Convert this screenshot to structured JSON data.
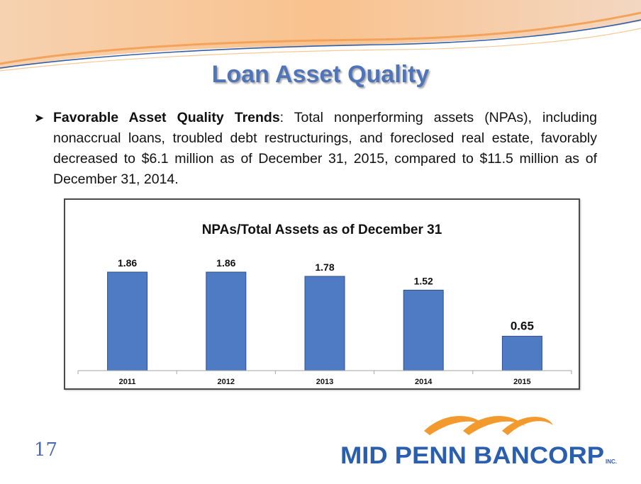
{
  "slide": {
    "title": "Loan Asset Quality",
    "bullet": {
      "lead": "Favorable Asset Quality Trends",
      "text": ":  Total nonperforming assets (NPAs), including nonaccrual loans, troubled debt restructurings, and foreclosed real estate, favorably decreased to $6.1 million as of December 31, 2015, compared to $11.5 million as of December 31, 2014."
    },
    "page_number": "17",
    "logo_text": "MID PENN BANCORP",
    "logo_suffix": "INC."
  },
  "colors": {
    "title": "#4f74b8",
    "bar": "#4f7bc4",
    "logo_blue": "#2a5fae",
    "logo_orange": "#f29a2e"
  },
  "chart_data": {
    "type": "bar",
    "title": "NPAs/Total Assets as of December 31",
    "categories": [
      "2011",
      "2012",
      "2013",
      "2014",
      "2015"
    ],
    "values": [
      1.86,
      1.86,
      1.78,
      1.52,
      0.65
    ],
    "data_labels": [
      "1.86",
      "1.86",
      "1.78",
      "1.52",
      "0.65"
    ],
    "xlabel": "",
    "ylabel": "",
    "ylim": [
      0,
      1.86
    ],
    "grid": false,
    "legend": "none"
  }
}
